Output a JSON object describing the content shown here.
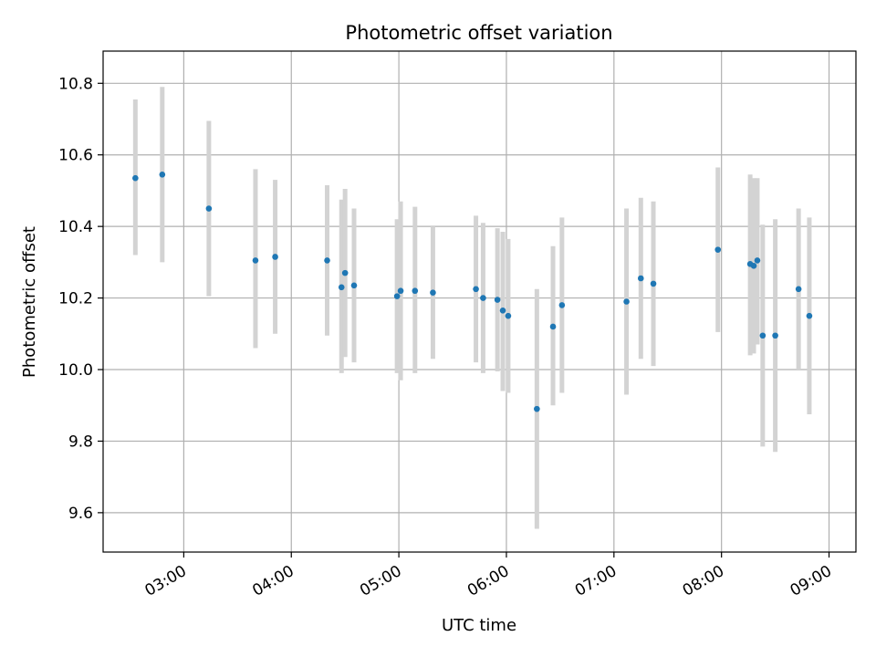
{
  "chart_data": {
    "type": "scatter",
    "title": "Photometric offset variation",
    "xlabel": "UTC time",
    "ylabel": "Photometric offset",
    "xlim": [
      "02:15",
      "09:15"
    ],
    "ylim": [
      9.49,
      10.89
    ],
    "grid": true,
    "x_ticks": [
      "03:00",
      "04:00",
      "05:00",
      "06:00",
      "07:00",
      "08:00",
      "09:00"
    ],
    "y_ticks": [
      "9.6",
      "9.8",
      "10.0",
      "10.2",
      "10.4",
      "10.6",
      "10.8"
    ],
    "colors": {
      "point": "#1f77b4",
      "errorbar": "#d3d3d3",
      "grid": "#b0b0b0"
    },
    "series": [
      {
        "points": [
          {
            "x": "02:33",
            "y": 10.535,
            "ylo": 10.32,
            "yhi": 10.755
          },
          {
            "x": "02:48",
            "y": 10.545,
            "ylo": 10.3,
            "yhi": 10.79
          },
          {
            "x": "03:14",
            "y": 10.45,
            "ylo": 10.205,
            "yhi": 10.695
          },
          {
            "x": "03:40",
            "y": 10.305,
            "ylo": 10.06,
            "yhi": 10.56
          },
          {
            "x": "03:51",
            "y": 10.315,
            "ylo": 10.1,
            "yhi": 10.53
          },
          {
            "x": "04:20",
            "y": 10.305,
            "ylo": 10.095,
            "yhi": 10.515
          },
          {
            "x": "04:28",
            "y": 10.23,
            "ylo": 9.99,
            "yhi": 10.475
          },
          {
            "x": "04:30",
            "y": 10.27,
            "ylo": 10.035,
            "yhi": 10.505
          },
          {
            "x": "04:35",
            "y": 10.235,
            "ylo": 10.02,
            "yhi": 10.45
          },
          {
            "x": "04:59",
            "y": 10.205,
            "ylo": 9.99,
            "yhi": 10.42
          },
          {
            "x": "05:01",
            "y": 10.22,
            "ylo": 9.97,
            "yhi": 10.47
          },
          {
            "x": "05:09",
            "y": 10.22,
            "ylo": 9.99,
            "yhi": 10.455
          },
          {
            "x": "05:19",
            "y": 10.215,
            "ylo": 10.03,
            "yhi": 10.4
          },
          {
            "x": "05:43",
            "y": 10.225,
            "ylo": 10.02,
            "yhi": 10.43
          },
          {
            "x": "05:47",
            "y": 10.2,
            "ylo": 9.99,
            "yhi": 10.41
          },
          {
            "x": "05:55",
            "y": 10.195,
            "ylo": 9.995,
            "yhi": 10.395
          },
          {
            "x": "05:58",
            "y": 10.165,
            "ylo": 9.94,
            "yhi": 10.385
          },
          {
            "x": "06:01",
            "y": 10.15,
            "ylo": 9.935,
            "yhi": 10.365
          },
          {
            "x": "06:17",
            "y": 9.89,
            "ylo": 9.555,
            "yhi": 10.225
          },
          {
            "x": "06:26",
            "y": 10.12,
            "ylo": 9.9,
            "yhi": 10.345
          },
          {
            "x": "06:31",
            "y": 10.18,
            "ylo": 9.935,
            "yhi": 10.425
          },
          {
            "x": "07:07",
            "y": 10.19,
            "ylo": 9.93,
            "yhi": 10.45
          },
          {
            "x": "07:15",
            "y": 10.255,
            "ylo": 10.03,
            "yhi": 10.48
          },
          {
            "x": "07:22",
            "y": 10.24,
            "ylo": 10.01,
            "yhi": 10.47
          },
          {
            "x": "07:58",
            "y": 10.335,
            "ylo": 10.105,
            "yhi": 10.565
          },
          {
            "x": "08:16",
            "y": 10.295,
            "ylo": 10.04,
            "yhi": 10.545
          },
          {
            "x": "08:18",
            "y": 10.29,
            "ylo": 10.045,
            "yhi": 10.535
          },
          {
            "x": "08:20",
            "y": 10.305,
            "ylo": 10.07,
            "yhi": 10.535
          },
          {
            "x": "08:23",
            "y": 10.095,
            "ylo": 9.785,
            "yhi": 10.405
          },
          {
            "x": "08:30",
            "y": 10.095,
            "ylo": 9.77,
            "yhi": 10.42
          },
          {
            "x": "08:43",
            "y": 10.225,
            "ylo": 10.0,
            "yhi": 10.45
          },
          {
            "x": "08:49",
            "y": 10.15,
            "ylo": 9.875,
            "yhi": 10.425
          }
        ]
      }
    ]
  }
}
